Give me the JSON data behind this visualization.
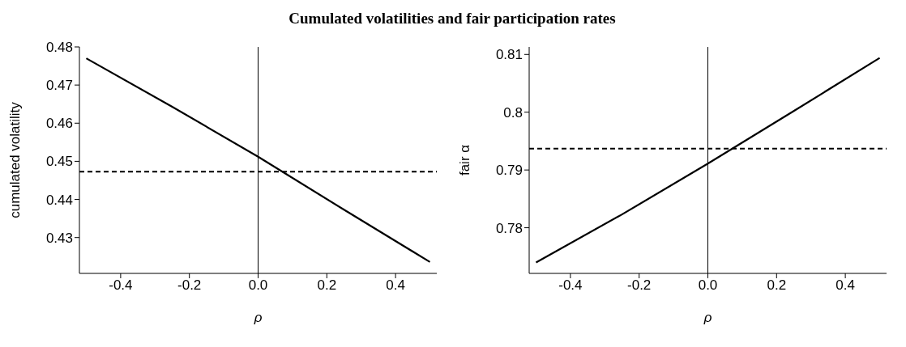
{
  "chart_data": [
    {
      "type": "line",
      "title": "Cumulated volatilities and fair participation rates",
      "xlabel": "ρ",
      "ylabel": "cumulated volatility",
      "x": [
        -0.5,
        -0.25,
        0,
        0.25,
        0.5
      ],
      "series": [
        {
          "color": "#000000",
          "values": [
            0.477,
            0.4643,
            0.4512,
            0.4373,
            0.4236
          ]
        }
      ],
      "xlim": [
        -0.52,
        0.52
      ],
      "xticks": [
        -0.4,
        -0.2,
        {
          "value": 0,
          "label": "0.0"
        },
        0.2,
        0.4
      ],
      "ylim": [
        0.4206,
        0.48
      ],
      "yticks": [
        0.43,
        0.44,
        0.45,
        0.46,
        0.47,
        0.48
      ],
      "ref_lines": [
        {
          "axis": "x",
          "value": 0,
          "color": "#000000",
          "line_style": "solid"
        },
        {
          "axis": "y",
          "value": 0.4473,
          "color": "#000000",
          "line_style": "dashed"
        }
      ],
      "grid": false,
      "legend": false,
      "marker": "none",
      "line_style": "solid"
    },
    {
      "type": "line",
      "xlabel": "ρ",
      "ylabel": "fair α",
      "x": [
        -0.5,
        -0.25,
        0,
        0.25,
        0.5
      ],
      "series": [
        {
          "color": "#000000",
          "values": [
            0.774,
            0.7823,
            0.7911,
            0.8002,
            0.8094
          ]
        }
      ],
      "xlim": [
        -0.52,
        0.52
      ],
      "xticks": [
        -0.4,
        -0.2,
        {
          "value": 0,
          "label": "0.0"
        },
        0.2,
        0.4
      ],
      "ylim": [
        0.7721,
        0.8113
      ],
      "yticks": [
        0.78,
        0.79,
        {
          "value": 0.8,
          "label": "0.8"
        },
        0.81
      ],
      "ref_lines": [
        {
          "axis": "x",
          "value": 0,
          "color": "#000000",
          "line_style": "solid"
        },
        {
          "axis": "y",
          "value": 0.7937,
          "color": "#000000",
          "line_style": "dashed"
        }
      ],
      "grid": false,
      "legend": false,
      "marker": "none",
      "line_style": "solid"
    }
  ]
}
